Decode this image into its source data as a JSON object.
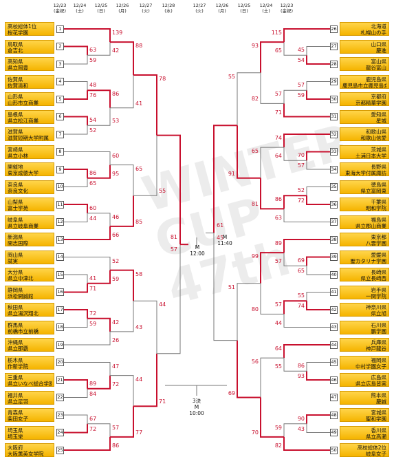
{
  "headers": [
    {
      "date": "12/23",
      "sub": "(金祝)"
    },
    {
      "date": "12/24",
      "sub": "(土)"
    },
    {
      "date": "12/25",
      "sub": "(日)"
    },
    {
      "date": "12/26",
      "sub": "(月)"
    },
    {
      "date": "12/27",
      "sub": "(火)"
    },
    {
      "date": "12/28",
      "sub": "(水)"
    },
    {
      "date": "12/27",
      "sub": "(火)"
    },
    {
      "date": "12/26",
      "sub": "(月)"
    },
    {
      "date": "12/25",
      "sub": "(日)"
    },
    {
      "date": "12/24",
      "sub": "(土)"
    },
    {
      "date": "12/23",
      "sub": "(金祝)"
    }
  ],
  "left_teams": [
    {
      "seed": "1",
      "l1": "高校総体1位",
      "l2": "桜花学園"
    },
    {
      "seed": "2",
      "l1": "鳥取県",
      "l2": "倉吉北"
    },
    {
      "seed": "3",
      "l1": "高知県",
      "l2": "県立岡豊"
    },
    {
      "seed": "4",
      "l1": "佐賀県",
      "l2": "佐賀清和"
    },
    {
      "seed": "5",
      "l1": "山形県",
      "l2": "山形市立商業"
    },
    {
      "seed": "6",
      "l1": "島根県",
      "l2": "県立松江商業"
    },
    {
      "seed": "7",
      "l1": "滋賀県",
      "l2": "滋賀短期大学附属"
    },
    {
      "seed": "8",
      "l1": "宮崎県",
      "l2": "県立小林"
    },
    {
      "seed": "9",
      "l1": "開催地",
      "l2": "東京成徳大学"
    },
    {
      "seed": "10",
      "l1": "奈良県",
      "l2": "奈良文化"
    },
    {
      "seed": "11",
      "l1": "山梨県",
      "l2": "富士学苑"
    },
    {
      "seed": "12",
      "l1": "岐阜県",
      "l2": "県立岐阜商業"
    },
    {
      "seed": "13",
      "l1": "新潟県",
      "l2": "開志国際"
    },
    {
      "seed": "14",
      "l1": "岡山県",
      "l2": "就実"
    },
    {
      "seed": "15",
      "l1": "大分県",
      "l2": "県立中津北"
    },
    {
      "seed": "16",
      "l1": "静岡県",
      "l2": "浜松開誠館"
    },
    {
      "seed": "17",
      "l1": "秋田県",
      "l2": "県立湯沢翔北"
    },
    {
      "seed": "18",
      "l1": "群馬県",
      "l2": "前橋市立前橋"
    },
    {
      "seed": "19",
      "l1": "沖縄県",
      "l2": "県立那覇"
    },
    {
      "seed": "20",
      "l1": "栃木県",
      "l2": "作新学院"
    },
    {
      "seed": "21",
      "l1": "三重県",
      "l2": "県立いなべ総合学園"
    },
    {
      "seed": "22",
      "l1": "福井県",
      "l2": "県立足羽"
    },
    {
      "seed": "23",
      "l1": "青森県",
      "l2": "柴田女子"
    },
    {
      "seed": "24",
      "l1": "埼玉県",
      "l2": "埼玉栄"
    },
    {
      "seed": "25",
      "l1": "大阪府",
      "l2": "大阪薫英女学院"
    }
  ],
  "right_teams": [
    {
      "seed": "26",
      "l1": "北海道",
      "l2": "札幌山の手"
    },
    {
      "seed": "27",
      "l1": "山口県",
      "l2": "慶進"
    },
    {
      "seed": "28",
      "l1": "富山県",
      "l2": "龍谷富山"
    },
    {
      "seed": "29",
      "l1": "鹿児島県",
      "l2": "鹿児島市立鹿児島女子"
    },
    {
      "seed": "30",
      "l1": "京都府",
      "l2": "京都精華学園"
    },
    {
      "seed": "31",
      "l1": "愛知県",
      "l2": "星城"
    },
    {
      "seed": "32",
      "l1": "和歌山県",
      "l2": "和歌山信愛"
    },
    {
      "seed": "33",
      "l1": "茨城県",
      "l2": "土浦日本大学"
    },
    {
      "seed": "34",
      "l1": "長野県",
      "l2": "東海大学付属諏訪"
    },
    {
      "seed": "35",
      "l1": "徳島県",
      "l2": "県立富岡東"
    },
    {
      "seed": "36",
      "l1": "千葉県",
      "l2": "昭和学院"
    },
    {
      "seed": "37",
      "l1": "福島県",
      "l2": "県立郡山商業"
    },
    {
      "seed": "38",
      "l1": "東京都",
      "l2": "八雲学園"
    },
    {
      "seed": "39",
      "l1": "愛媛県",
      "l2": "聖カタリナ学園"
    },
    {
      "seed": "40",
      "l1": "長崎県",
      "l2": "県立長崎西"
    },
    {
      "seed": "41",
      "l1": "岩手県",
      "l2": "一関学院"
    },
    {
      "seed": "42",
      "l1": "神奈川県",
      "l2": "県立旭"
    },
    {
      "seed": "43",
      "l1": "石川県",
      "l2": "鵬学園"
    },
    {
      "seed": "44",
      "l1": "兵庫県",
      "l2": "神戸龍谷"
    },
    {
      "seed": "45",
      "l1": "福岡県",
      "l2": "中村学園女子"
    },
    {
      "seed": "46",
      "l1": "広島県",
      "l2": "県立広島皆実"
    },
    {
      "seed": "47",
      "l1": "熊本県",
      "l2": "慶誠"
    },
    {
      "seed": "48",
      "l1": "宮城県",
      "l2": "聖和学園"
    },
    {
      "seed": "49",
      "l1": "香川県",
      "l2": "県立高瀬"
    },
    {
      "seed": "50",
      "l1": "高校総体2位",
      "l2": "岐阜女子"
    }
  ],
  "left_scores": {
    "r1": [
      [
        "63",
        "59"
      ],
      [
        "48",
        "76"
      ],
      [
        "54",
        "52"
      ],
      [
        "86",
        "65"
      ],
      [
        "60",
        "44"
      ],
      [
        "41",
        "71"
      ],
      [
        "72",
        "59"
      ],
      [
        "89",
        "84"
      ],
      [
        "67",
        "72"
      ]
    ],
    "r2": [
      [
        "139",
        "42"
      ],
      [
        "86",
        "53"
      ],
      [
        "60",
        "95"
      ],
      [
        "46",
        "66"
      ],
      [
        "52",
        "59"
      ],
      [
        "42",
        "26"
      ],
      [
        "47",
        "72"
      ],
      [
        "57",
        "86"
      ]
    ],
    "r3": [
      [
        "88",
        "41"
      ],
      [
        "65",
        "85"
      ],
      [
        "58",
        "43"
      ],
      [
        "44",
        "77"
      ]
    ],
    "r4": [
      [
        "78",
        "55"
      ],
      [
        "44",
        "71"
      ]
    ],
    "r5": [
      "81",
      "57"
    ]
  },
  "right_scores": {
    "r1": [
      [
        "45",
        "54"
      ],
      [
        "57",
        "59"
      ],
      [
        "70",
        "57"
      ],
      [
        "52",
        "72"
      ],
      [
        "69",
        "65"
      ],
      [
        "55",
        "74"
      ],
      [
        "86",
        "93"
      ],
      [
        "90",
        "43"
      ]
    ],
    "r2": [
      [
        "115",
        "65"
      ],
      [
        "57",
        "71"
      ],
      [
        "74",
        "64"
      ],
      [
        "86",
        "63"
      ],
      [
        "89",
        "57"
      ],
      [
        "57",
        "44"
      ],
      [
        "64",
        "55"
      ],
      [
        "59",
        "82"
      ]
    ],
    "r3": [
      [
        "93",
        "82"
      ],
      [
        "65",
        "81"
      ],
      [
        "99",
        "80"
      ],
      [
        "56",
        "70"
      ]
    ],
    "r4": [
      [
        "55",
        "91"
      ],
      [
        "51",
        "69"
      ]
    ],
    "r5": [
      "61",
      "45"
    ]
  },
  "final_scores": {
    "left": "81",
    "right": "61"
  },
  "venue_left": {
    "court": "M",
    "time": "12:00"
  },
  "venue_right": {
    "court": "M",
    "time": "11:40"
  },
  "third_place": {
    "label": "3決",
    "court": "M",
    "time": "10:00"
  },
  "colors": {
    "winner_line": "#c8102e",
    "loser_line": "#777777",
    "team_fill": "#f5b400"
  },
  "watermark": {
    "l1": "WINTER",
    "l2": "CUP",
    "l3": "47th"
  }
}
